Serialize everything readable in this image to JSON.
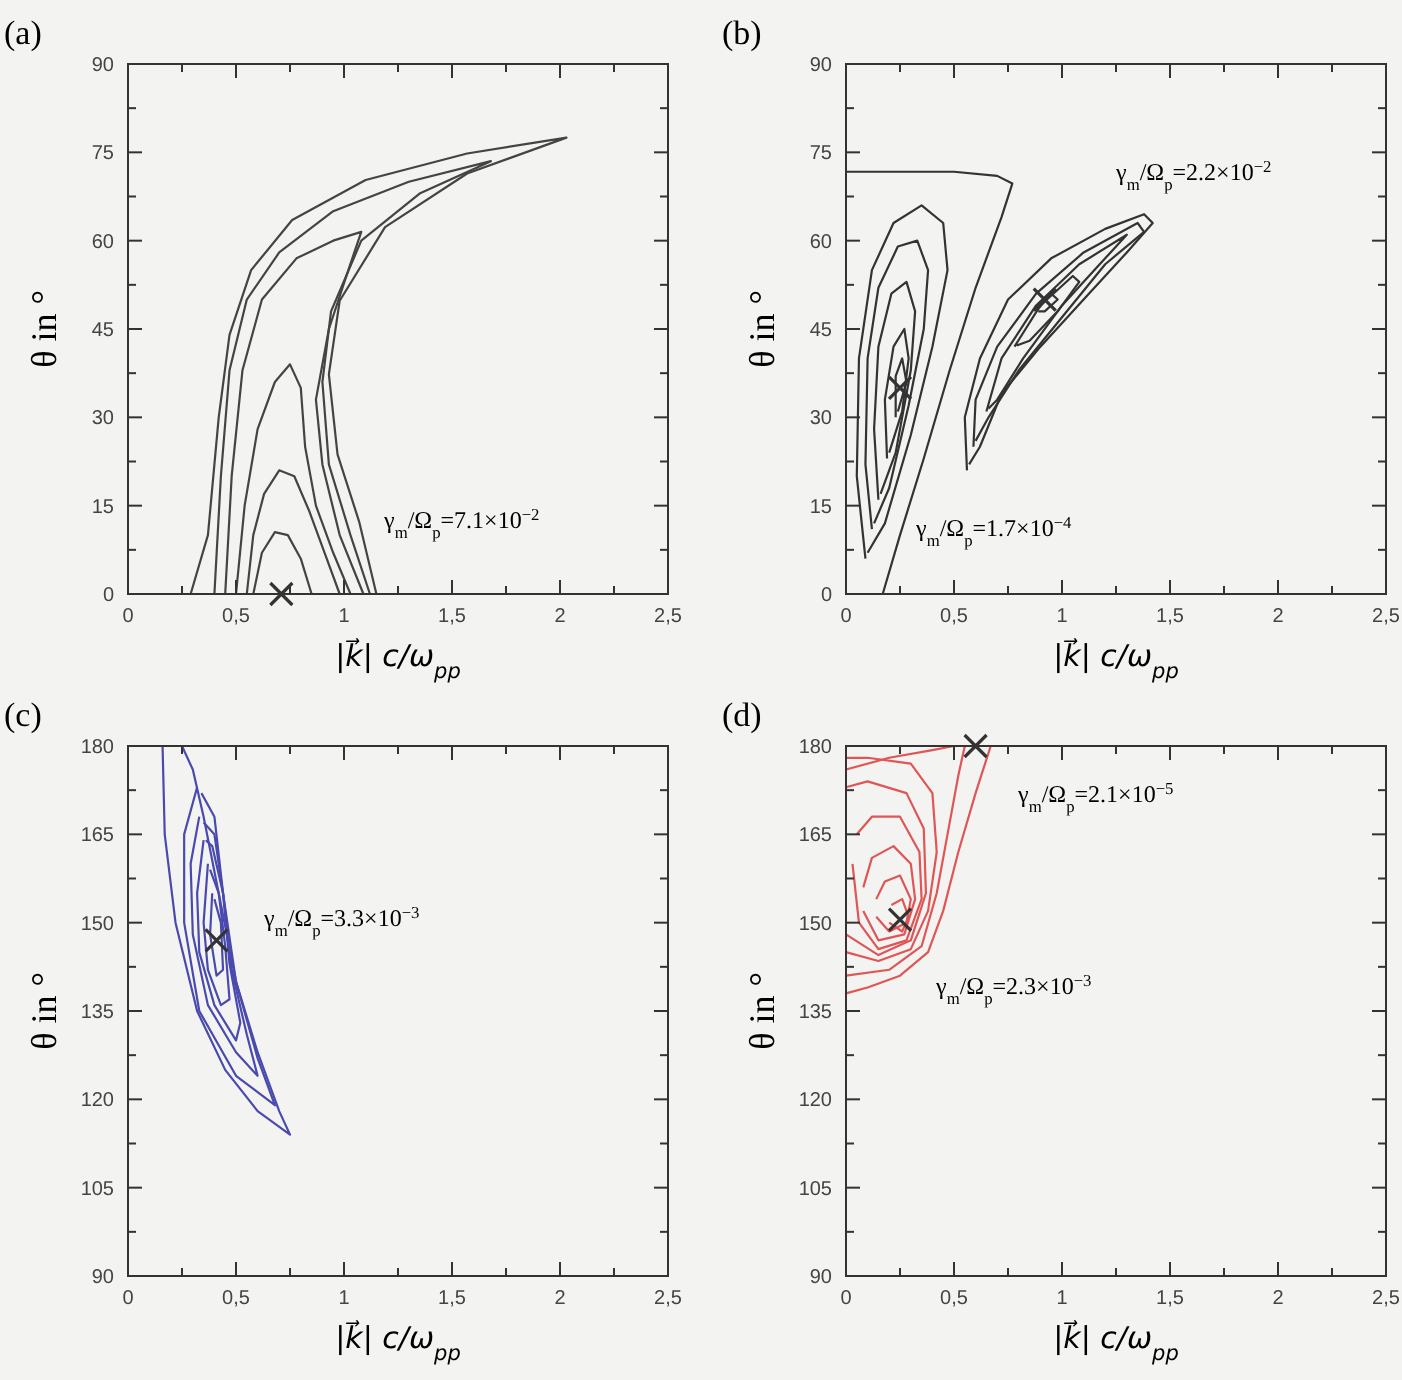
{
  "chart_data": [
    {
      "type": "line",
      "title": "(a)",
      "xlabel": "|k⃗| c/ω$_{pp}$",
      "ylabel": "θ in °",
      "xlim": [
        0,
        2.5
      ],
      "ylim": [
        0,
        90
      ],
      "xticks": [
        0,
        {
          "value": 0.25,
          "label": null
        },
        {
          "value": 0.5,
          "label": "0,5"
        },
        {
          "value": 0.75,
          "label": null
        },
        1,
        {
          "value": 1.25,
          "label": null
        },
        {
          "value": 1.5,
          "label": "1,5"
        },
        {
          "value": 1.75,
          "label": null
        },
        2,
        {
          "value": 2.25,
          "label": null
        },
        {
          "value": 2.5,
          "label": "2,5"
        }
      ],
      "yticks": [
        0,
        {
          "value": 7.5,
          "label": null
        },
        15,
        {
          "value": 22.5,
          "label": null
        },
        30,
        {
          "value": 37.5,
          "label": null
        },
        45,
        {
          "value": 52.5,
          "label": null
        },
        60,
        {
          "value": 67.5,
          "label": null
        },
        75,
        {
          "value": 82.5,
          "label": null
        },
        90
      ],
      "annotations": [
        "γ$_{m}$/Ω$_{p}$=7.1×10$^{−2}$"
      ],
      "series": [
        {
          "color": "#444444",
          "x": [
            0.29,
            0.37,
            0.42,
            0.47,
            0.57,
            0.76,
            1.1,
            1.57,
            2.03,
            1.57,
            1.19,
            0.98,
            0.93,
            0.97,
            1.07,
            1.15
          ],
          "values": [
            0,
            10,
            30,
            44,
            55,
            63.5,
            70.3,
            74.8,
            77.5,
            71.4,
            62.3,
            49.8,
            37.3,
            23.7,
            12.3,
            0
          ]
        },
        {
          "color": "#444444",
          "x": [
            0.4,
            0.43,
            0.47,
            0.55,
            0.7,
            0.95,
            1.3,
            1.68,
            1.35,
            1.08,
            0.94,
            0.9,
            0.93,
            1.03,
            1.12
          ],
          "values": [
            0,
            20,
            38,
            50,
            58,
            65,
            70,
            73.5,
            68,
            60,
            48,
            36,
            22,
            10,
            0
          ]
        },
        {
          "color": "#444444",
          "x": [
            0.45,
            0.48,
            0.53,
            0.62,
            0.78,
            0.95,
            1.08,
            1.02,
            0.93,
            0.87,
            0.9,
            0.98,
            1.09
          ],
          "values": [
            0,
            20,
            38,
            50,
            57,
            60,
            61.5,
            55,
            45,
            33,
            22,
            10,
            0
          ]
        },
        {
          "color": "#444444",
          "x": [
            0.5,
            0.54,
            0.6,
            0.68,
            0.75,
            0.8,
            0.82,
            0.87,
            0.95,
            1.03
          ],
          "values": [
            0,
            15,
            28,
            36,
            39,
            35,
            25,
            15,
            7,
            0
          ]
        },
        {
          "color": "#444444",
          "x": [
            0.55,
            0.58,
            0.63,
            0.7,
            0.77,
            0.84,
            0.92,
            0.98
          ],
          "values": [
            0,
            10,
            17,
            21,
            20,
            14,
            6,
            0
          ]
        },
        {
          "color": "#444444",
          "x": [
            0.58,
            0.62,
            0.68,
            0.74,
            0.8,
            0.85
          ],
          "values": [
            0,
            7,
            10.5,
            10,
            6,
            0
          ]
        },
        {
          "type": "scatter",
          "marker": "cross",
          "color": "#333333",
          "x": [
            0.71
          ],
          "values": [
            0
          ]
        }
      ]
    },
    {
      "type": "line",
      "title": "(b)",
      "xlabel": "|k⃗| c/ω$_{pp}$",
      "ylabel": "θ in °",
      "xlim": [
        0,
        2.5
      ],
      "ylim": [
        0,
        90
      ],
      "xticks": [
        0,
        {
          "value": 0.25,
          "label": null
        },
        {
          "value": 0.5,
          "label": "0,5"
        },
        {
          "value": 0.75,
          "label": null
        },
        1,
        {
          "value": 1.25,
          "label": null
        },
        {
          "value": 1.5,
          "label": "1,5"
        },
        {
          "value": 1.75,
          "label": null
        },
        2,
        {
          "value": 2.25,
          "label": null
        },
        {
          "value": 2.5,
          "label": "2,5"
        }
      ],
      "yticks": [
        0,
        {
          "value": 7.5,
          "label": null
        },
        15,
        {
          "value": 22.5,
          "label": null
        },
        30,
        {
          "value": 37.5,
          "label": null
        },
        45,
        {
          "value": 52.5,
          "label": null
        },
        60,
        {
          "value": 67.5,
          "label": null
        },
        75,
        {
          "value": 82.5,
          "label": null
        },
        90
      ],
      "annotations": [
        "γ$_{m}$/Ω$_{p}$=2.2×10$^{−2}$",
        "γ$_{m}$/Ω$_{p}$=1.7×10$^{−4}$"
      ],
      "series": [
        {
          "color": "#333333",
          "x": [
            0,
            0.5,
            0.7,
            0.77,
            0.72,
            0.6,
            0.48,
            0.36,
            0.25,
            0.17
          ],
          "values": [
            71.7,
            71.7,
            71,
            69.7,
            64,
            52,
            38,
            23,
            10,
            0
          ]
        },
        {
          "color": "#333333",
          "x": [
            0.09,
            0.05,
            0.06,
            0.12,
            0.22,
            0.35,
            0.45,
            0.47,
            0.4,
            0.3,
            0.18,
            0.1
          ],
          "values": [
            6,
            20,
            40,
            55,
            63,
            66,
            63,
            55,
            42,
            27,
            12,
            7
          ]
        },
        {
          "color": "#333333",
          "x": [
            0.12,
            0.09,
            0.1,
            0.15,
            0.24,
            0.33,
            0.38,
            0.36,
            0.29,
            0.2,
            0.13
          ],
          "values": [
            11,
            22,
            40,
            52,
            59,
            60,
            55,
            45,
            32,
            18,
            12
          ]
        },
        {
          "color": "#333333",
          "x": [
            0.15,
            0.13,
            0.15,
            0.21,
            0.28,
            0.32,
            0.3,
            0.23,
            0.16
          ],
          "values": [
            16,
            28,
            42,
            51,
            53,
            48,
            38,
            24,
            17
          ]
        },
        {
          "color": "#333333",
          "x": [
            0.19,
            0.18,
            0.22,
            0.27,
            0.29,
            0.26,
            0.2
          ],
          "values": [
            23,
            33,
            42,
            45,
            40,
            31,
            24
          ]
        },
        {
          "color": "#333333",
          "x": [
            0.23,
            0.23,
            0.26,
            0.28,
            0.24
          ],
          "values": [
            30,
            37,
            40,
            36,
            31
          ]
        },
        {
          "color": "#333333",
          "x": [
            0.56,
            0.55,
            0.62,
            0.75,
            0.95,
            1.2,
            1.38,
            1.42,
            1.3,
            1.1,
            0.9,
            0.72,
            0.62,
            0.57
          ],
          "values": [
            21,
            30,
            40,
            50,
            57,
            62,
            64.5,
            63,
            58,
            50,
            42,
            34,
            25,
            22
          ]
        },
        {
          "color": "#333333",
          "x": [
            0.59,
            0.6,
            0.7,
            0.88,
            1.1,
            1.35,
            1.38,
            1.2,
            1.0,
            0.8,
            0.66,
            0.6
          ],
          "values": [
            25,
            33,
            42,
            51,
            58,
            63,
            61.5,
            56,
            47,
            38,
            30,
            26
          ]
        },
        {
          "color": "#333333",
          "x": [
            0.65,
            0.72,
            0.88,
            1.08,
            1.3,
            1.2,
            1.0,
            0.82,
            0.7,
            0.66
          ],
          "values": [
            31,
            40,
            49,
            56,
            61,
            57,
            49,
            40,
            33,
            31.5
          ]
        },
        {
          "color": "#333333",
          "x": [
            0.78,
            0.9,
            1.05,
            1.08,
            0.98,
            0.85,
            0.79
          ],
          "values": [
            42,
            49,
            54,
            53,
            48,
            43,
            42.2
          ]
        },
        {
          "color": "#333333",
          "x": [
            0.88,
            0.95,
            0.98,
            0.92,
            0.89
          ],
          "values": [
            48,
            51,
            50,
            48,
            48
          ]
        },
        {
          "type": "scatter",
          "marker": "cross",
          "color": "#333333",
          "x": [
            0.25,
            0.92
          ],
          "values": [
            35,
            50
          ]
        }
      ]
    },
    {
      "type": "line",
      "title": "(c)",
      "xlabel": "|k⃗| c/ω$_{pp}$",
      "ylabel": "θ in °",
      "xlim": [
        0,
        2.5
      ],
      "ylim": [
        90,
        180
      ],
      "xticks": [
        0,
        {
          "value": 0.25,
          "label": null
        },
        {
          "value": 0.5,
          "label": "0,5"
        },
        {
          "value": 0.75,
          "label": null
        },
        1,
        {
          "value": 1.25,
          "label": null
        },
        {
          "value": 1.5,
          "label": "1,5"
        },
        {
          "value": 1.75,
          "label": null
        },
        2,
        {
          "value": 2.25,
          "label": null
        },
        {
          "value": 2.5,
          "label": "2,5"
        }
      ],
      "yticks": [
        90,
        {
          "value": 97.5,
          "label": null
        },
        105,
        {
          "value": 112.5,
          "label": null
        },
        120,
        {
          "value": 127.5,
          "label": null
        },
        135,
        {
          "value": 142.5,
          "label": null
        },
        150,
        {
          "value": 157.5,
          "label": null
        },
        165,
        {
          "value": 172.5,
          "label": null
        },
        180
      ],
      "annotations": [
        "γ$_{m}$/Ω$_{p}$=3.3×10$^{−3}$"
      ],
      "series": [
        {
          "color": "#4a4aae",
          "x": [
            0.16,
            0.17,
            0.22,
            0.32,
            0.45,
            0.6,
            0.75,
            0.7,
            0.6,
            0.5,
            0.42,
            0.35,
            0.3,
            0.25
          ],
          "values": [
            180,
            165,
            150,
            135,
            125,
            118,
            114,
            118,
            128,
            140,
            155,
            168,
            176,
            180
          ]
        },
        {
          "color": "#4a4aae",
          "x": [
            0.32,
            0.26,
            0.26,
            0.33,
            0.5,
            0.68,
            0.6,
            0.5,
            0.44,
            0.4,
            0.34
          ],
          "values": [
            173,
            165,
            150,
            135,
            124,
            119,
            127,
            140,
            155,
            168,
            172
          ]
        },
        {
          "color": "#4a4aae",
          "x": [
            0.33,
            0.29,
            0.3,
            0.37,
            0.5,
            0.6,
            0.55,
            0.48,
            0.44,
            0.4,
            0.35
          ],
          "values": [
            168,
            160,
            148,
            136,
            128,
            124,
            131,
            142,
            155,
            165,
            167
          ]
        },
        {
          "color": "#4a4aae",
          "x": [
            0.35,
            0.32,
            0.33,
            0.4,
            0.5,
            0.52,
            0.47,
            0.44,
            0.39,
            0.36
          ],
          "values": [
            164,
            155,
            145,
            136,
            130,
            133,
            143,
            155,
            163,
            164
          ]
        },
        {
          "color": "#4a4aae",
          "x": [
            0.37,
            0.35,
            0.37,
            0.43,
            0.47,
            0.45,
            0.42,
            0.38
          ],
          "values": [
            160,
            150,
            142,
            136,
            137,
            146,
            155,
            159
          ]
        },
        {
          "color": "#4a4aae",
          "x": [
            0.39,
            0.38,
            0.41,
            0.44,
            0.43,
            0.4
          ],
          "values": [
            155,
            148,
            141,
            142,
            150,
            154
          ]
        },
        {
          "type": "scatter",
          "marker": "cross",
          "color": "#333333",
          "x": [
            0.41
          ],
          "values": [
            147
          ]
        }
      ]
    },
    {
      "type": "line",
      "title": "(d)",
      "xlabel": "|k⃗| c/ω$_{pp}$",
      "ylabel": "θ in °",
      "xlim": [
        0,
        2.5
      ],
      "ylim": [
        90,
        180
      ],
      "xticks": [
        0,
        {
          "value": 0.25,
          "label": null
        },
        {
          "value": 0.5,
          "label": "0,5"
        },
        {
          "value": 0.75,
          "label": null
        },
        1,
        {
          "value": 1.25,
          "label": null
        },
        {
          "value": 1.5,
          "label": "1,5"
        },
        {
          "value": 1.75,
          "label": null
        },
        2,
        {
          "value": 2.25,
          "label": null
        },
        {
          "value": 2.5,
          "label": "2,5"
        }
      ],
      "yticks": [
        90,
        {
          "value": 97.5,
          "label": null
        },
        105,
        {
          "value": 112.5,
          "label": null
        },
        120,
        {
          "value": 127.5,
          "label": null
        },
        135,
        {
          "value": 142.5,
          "label": null
        },
        150,
        {
          "value": 157.5,
          "label": null
        },
        165,
        {
          "value": 172.5,
          "label": null
        },
        180
      ],
      "annotations": [
        "γ$_{m}$/Ω$_{p}$=2.1×10$^{−5}$",
        "γ$_{m}$/Ω$_{p}$=2.3×10$^{−3}$"
      ],
      "series": [
        {
          "color": "#e05555",
          "x": [
            0,
            0.1,
            0.25,
            0.38,
            0.45,
            0.52,
            0.6,
            0.67
          ],
          "values": [
            138,
            139,
            141,
            145,
            152,
            162,
            172,
            180
          ]
        },
        {
          "color": "#e05555",
          "x": [
            0,
            0.2,
            0.35,
            0.42,
            0.47,
            0.52,
            0.55
          ],
          "values": [
            141,
            142,
            146,
            155,
            165,
            175,
            180
          ]
        },
        {
          "color": "#e05555",
          "x": [
            0,
            0.15,
            0.3,
            0.38,
            0.42,
            0.4,
            0.3,
            0.1,
            0
          ],
          "values": [
            145,
            143.5,
            145.5,
            152,
            162,
            172,
            177,
            178,
            178
          ]
        },
        {
          "color": "#e05555",
          "x": [
            0,
            0.15,
            0.3,
            0.37,
            0.36,
            0.28,
            0.1,
            0
          ],
          "values": [
            148,
            144.5,
            147,
            155,
            166,
            172,
            174,
            173
          ]
        },
        {
          "color": "#e05555",
          "x": [
            0.03,
            0.06,
            0.15,
            0.28,
            0.35,
            0.34,
            0.25,
            0.12,
            0.05
          ],
          "values": [
            160,
            150,
            145.5,
            147,
            154,
            162,
            168,
            168,
            165
          ]
        },
        {
          "color": "#e05555",
          "x": [
            0.08,
            0.15,
            0.27,
            0.32,
            0.3,
            0.22,
            0.12,
            0.08
          ],
          "values": [
            152,
            147,
            148,
            154,
            160,
            163,
            161,
            156
          ]
        },
        {
          "color": "#e05555",
          "x": [
            0.14,
            0.2,
            0.28,
            0.3,
            0.25,
            0.18,
            0.14
          ],
          "values": [
            151,
            148.5,
            150,
            154,
            158,
            157,
            154
          ]
        },
        {
          "color": "#e05555",
          "x": [
            0.2,
            0.26,
            0.29,
            0.26,
            0.21
          ],
          "values": [
            150,
            148.5,
            151,
            154,
            153
          ]
        },
        {
          "color": "#e05555",
          "x": [
            0,
            0.2,
            0.4,
            0.5
          ],
          "values": [
            176,
            178,
            179.3,
            180
          ]
        },
        {
          "type": "scatter",
          "marker": "cross",
          "color": "#333333",
          "x": [
            0.25,
            0.6
          ],
          "values": [
            150.5,
            180
          ]
        }
      ]
    }
  ]
}
